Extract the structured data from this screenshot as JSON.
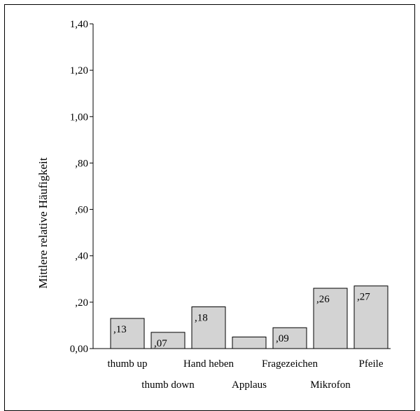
{
  "chart_data": {
    "type": "bar",
    "ylabel": "Mittlere relative Häufigkeit",
    "ylim": [
      0,
      1.4
    ],
    "yticks": [
      {
        "value": 0.0,
        "label": "0,00"
      },
      {
        "value": 0.2,
        "label": ",20"
      },
      {
        "value": 0.4,
        "label": ",40"
      },
      {
        "value": 0.6,
        "label": ",60"
      },
      {
        "value": 0.8,
        "label": ",80"
      },
      {
        "value": 1.0,
        "label": "1,00"
      },
      {
        "value": 1.2,
        "label": "1,20"
      },
      {
        "value": 1.4,
        "label": "1,40"
      }
    ],
    "categories": [
      "thumb up",
      "thumb down",
      "Hand heben",
      "Applaus",
      "Fragezeichen",
      "Mikrofon",
      "Pfeile"
    ],
    "values": [
      0.13,
      0.07,
      0.18,
      0.05,
      0.09,
      0.26,
      0.27
    ],
    "data_labels": [
      ",13",
      ",07",
      ",18",
      "",
      ",09",
      ",26",
      ",27"
    ],
    "grid": false,
    "colors": {
      "bar_fill": "#d3d3d3",
      "bar_stroke": "#000000",
      "axis": "#000000"
    }
  }
}
